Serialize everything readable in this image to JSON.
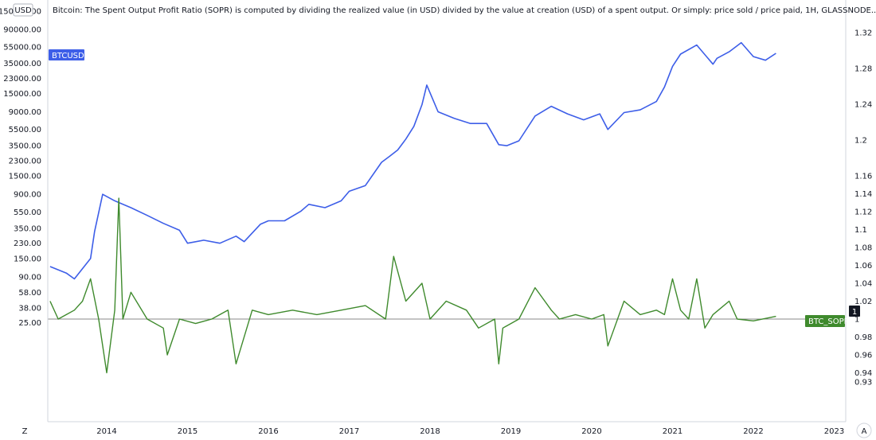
{
  "header": {
    "unit_badge": "USD",
    "description": "Bitcoin: The Spent Output Profit Ratio (SOPR) is computed by dividing the realized value (in USD) divided by the value at creation (USD) of a spent output. Or simply: price sold / price paid, 1H, GLASSNODE..."
  },
  "corner": {
    "left_button": "Z",
    "right_button": "A"
  },
  "colors": {
    "btc_line": "#3d5ee8",
    "sopr_line": "#3f8a2d",
    "baseline": "#8a8a8a",
    "current_value_tag": "#131722"
  },
  "chart_data": {
    "type": "line",
    "x_axis": {
      "ticks": [
        "2014",
        "2015",
        "2016",
        "2017",
        "2018",
        "2019",
        "2020",
        "2021",
        "2022",
        "2023"
      ]
    },
    "left_axis": {
      "scale": "log",
      "unit": "USD",
      "ticks": [
        "150000.00",
        "90000.00",
        "55000.00",
        "35000.00",
        "23000.00",
        "15000.00",
        "9000.00",
        "5500.00",
        "3500.00",
        "2300.00",
        "1500.00",
        "900.00",
        "550.00",
        "350.00",
        "230.00",
        "150.00",
        "90.00",
        "58.00",
        "38.00",
        "25.00"
      ]
    },
    "right_axis": {
      "scale": "linear",
      "ticks": [
        "1.32",
        "1.28",
        "1.24",
        "1.2",
        "1.16",
        "1.14",
        "1.12",
        "1.1",
        "1.08",
        "1.06",
        "1.04",
        "1.02",
        "1",
        "0.98",
        "0.96",
        "0.94",
        "0.93"
      ]
    },
    "current_value_label": "1",
    "series": [
      {
        "name": "BTCUSD",
        "axis": "left",
        "x": [
          2013.3,
          2013.5,
          2013.6,
          2013.8,
          2013.85,
          2013.95,
          2014.1,
          2014.3,
          2014.5,
          2014.7,
          2014.9,
          2015.0,
          2015.2,
          2015.4,
          2015.6,
          2015.7,
          2015.9,
          2016.0,
          2016.2,
          2016.4,
          2016.5,
          2016.7,
          2016.9,
          2017.0,
          2017.2,
          2017.4,
          2017.5,
          2017.6,
          2017.7,
          2017.8,
          2017.9,
          2017.96,
          2018.1,
          2018.3,
          2018.5,
          2018.7,
          2018.85,
          2018.95,
          2019.1,
          2019.3,
          2019.5,
          2019.7,
          2019.9,
          2020.1,
          2020.2,
          2020.4,
          2020.6,
          2020.8,
          2020.9,
          2021.0,
          2021.1,
          2021.3,
          2021.5,
          2021.55,
          2021.7,
          2021.85,
          2022.0,
          2022.15,
          2022.28
        ],
        "values": [
          120,
          100,
          85,
          150,
          320,
          900,
          750,
          620,
          500,
          400,
          330,
          230,
          250,
          230,
          280,
          240,
          390,
          430,
          430,
          560,
          680,
          620,
          750,
          980,
          1150,
          2200,
          2600,
          3100,
          4200,
          6000,
          11000,
          19000,
          9000,
          7500,
          6500,
          6500,
          3600,
          3500,
          4000,
          8000,
          10500,
          8500,
          7200,
          8500,
          5500,
          8800,
          9500,
          12000,
          18000,
          32000,
          45000,
          58000,
          34000,
          40000,
          48000,
          62000,
          42000,
          38000,
          46000
        ]
      },
      {
        "name": "BTC_SOPR",
        "axis": "right",
        "x": [
          2013.3,
          2013.4,
          2013.5,
          2013.6,
          2013.7,
          2013.8,
          2013.9,
          2014.0,
          2014.1,
          2014.15,
          2014.2,
          2014.3,
          2014.5,
          2014.7,
          2014.75,
          2014.9,
          2015.1,
          2015.3,
          2015.5,
          2015.6,
          2015.8,
          2016.0,
          2016.3,
          2016.6,
          2016.9,
          2017.2,
          2017.45,
          2017.55,
          2017.7,
          2017.9,
          2018.0,
          2018.2,
          2018.45,
          2018.6,
          2018.8,
          2018.85,
          2018.9,
          2019.1,
          2019.3,
          2019.5,
          2019.6,
          2019.8,
          2020.0,
          2020.15,
          2020.2,
          2020.4,
          2020.6,
          2020.8,
          2020.9,
          2021.0,
          2021.1,
          2021.2,
          2021.3,
          2021.4,
          2021.5,
          2021.7,
          2021.8,
          2022.0,
          2022.28
        ],
        "values": [
          1.02,
          1.0,
          1.005,
          1.01,
          1.02,
          1.045,
          1.0,
          0.94,
          1.01,
          1.135,
          1.0,
          1.03,
          1.0,
          0.99,
          0.96,
          1.0,
          0.995,
          1.0,
          1.01,
          0.95,
          1.01,
          1.005,
          1.01,
          1.005,
          1.01,
          1.015,
          1.0,
          1.07,
          1.02,
          1.04,
          1.0,
          1.02,
          1.01,
          0.99,
          1.0,
          0.95,
          0.99,
          1.0,
          1.035,
          1.01,
          1.0,
          1.005,
          1.0,
          1.005,
          0.97,
          1.02,
          1.005,
          1.01,
          1.005,
          1.045,
          1.01,
          1.0,
          1.045,
          0.99,
          1.005,
          1.02,
          1.0,
          0.998,
          1.003
        ]
      }
    ]
  }
}
